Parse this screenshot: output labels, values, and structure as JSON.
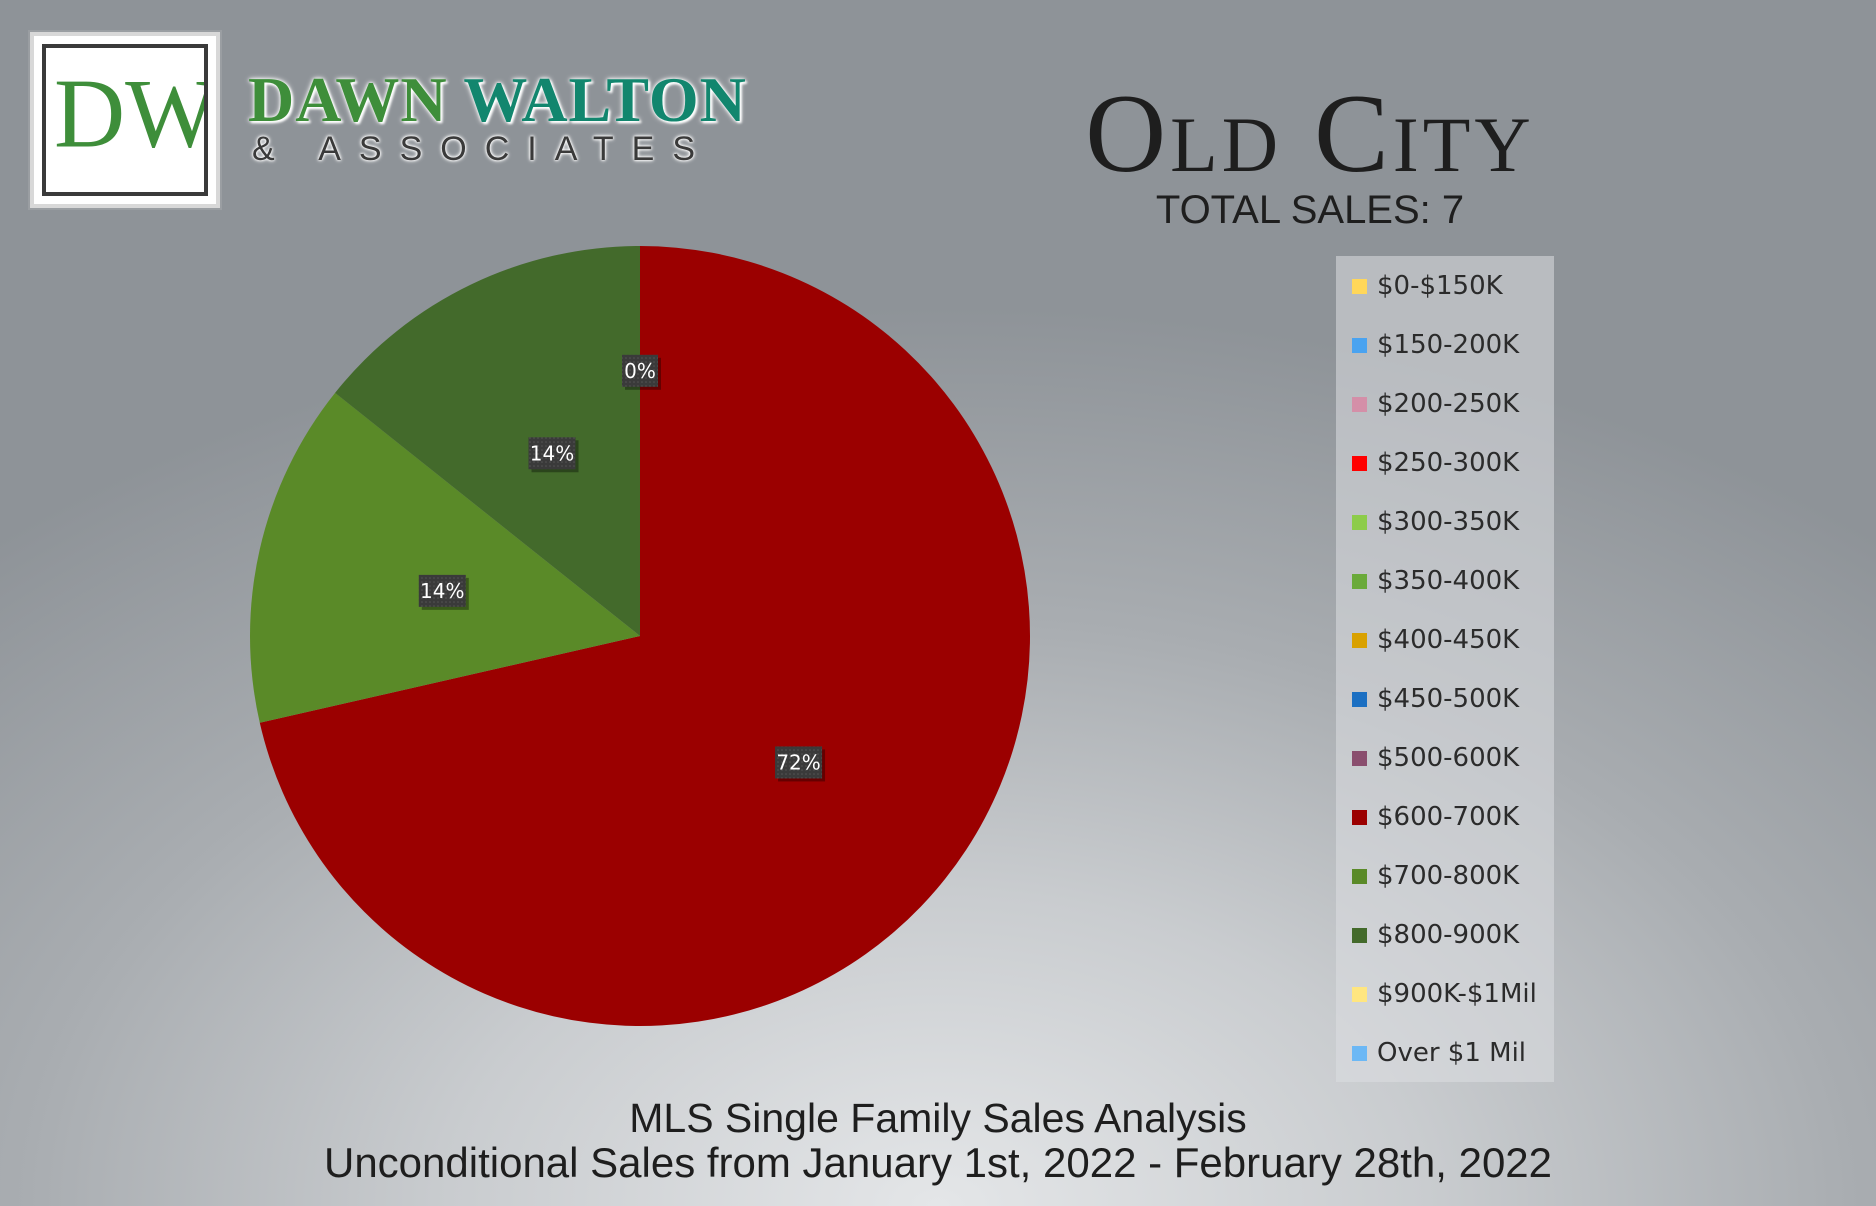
{
  "brand": {
    "monogram": "DW",
    "name_first": "DAWN",
    "name_last": "WALTON",
    "subtitle": "& ASSOCIATES",
    "colors": {
      "green": "#3e8e3a",
      "teal": "#12866e"
    }
  },
  "header": {
    "title": "Old City",
    "total_sales": "TOTAL SALES: 7"
  },
  "chart_data": {
    "type": "pie",
    "categories": [
      "$0-$150K",
      "$150-200K",
      "$200-250K",
      "$250-300K",
      "$300-350K",
      "$350-400K",
      "$400-450K",
      "$450-500K",
      "$500-600K",
      "$600-700K",
      "$700-800K",
      "$800-900K",
      "$900K-$1Mil",
      "Over $1 Mil"
    ],
    "colors": [
      "#ffd75a",
      "#4aa3f0",
      "#d48fa8",
      "#ff0000",
      "#8dcc4a",
      "#6aaa3a",
      "#d9a100",
      "#1b6fc2",
      "#8a4e6e",
      "#9b0000",
      "#5a8a28",
      "#436a2b",
      "#ffe680",
      "#6cb8f5"
    ],
    "values": [
      0,
      0,
      0,
      0,
      0,
      0,
      0,
      0,
      0,
      5,
      1,
      1,
      0,
      0
    ],
    "data_labels": [
      {
        "category": "$600-700K",
        "text": "72%"
      },
      {
        "category": "$700-800K",
        "text": "14%"
      },
      {
        "category": "$800-900K",
        "text": "14%"
      },
      {
        "category": "$900K-$1Mil",
        "text": "0%"
      }
    ],
    "legend_position": "right"
  },
  "footer": {
    "line1": "MLS Single Family Sales Analysis",
    "line2": "Unconditional Sales from January 1st, 2022 - February 28th, 2022"
  }
}
